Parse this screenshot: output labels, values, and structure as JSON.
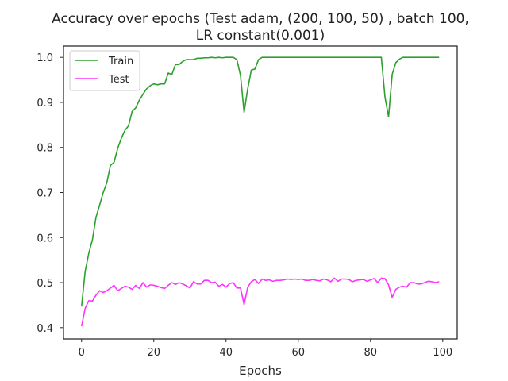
{
  "chart_data": {
    "type": "line",
    "title_line1": "Accuracy over epochs (Test adam, (200, 100, 50) , batch 100,",
    "title_line2": "LR constant(0.001)",
    "xlabel": "Epochs",
    "ylabel": "",
    "xlim": [
      -5,
      104
    ],
    "ylim": [
      0.375,
      1.025
    ],
    "xticks": [
      "0",
      "20",
      "40",
      "60",
      "80",
      "100"
    ],
    "yticks": [
      "0.4",
      "0.5",
      "0.6",
      "0.7",
      "0.8",
      "0.9",
      "1.0"
    ],
    "grid": false,
    "legend_position": "top-left",
    "series": [
      {
        "name": "Train",
        "color": "#2ca02c",
        "x": [
          0,
          1,
          2,
          3,
          4,
          5,
          6,
          7,
          8,
          9,
          10,
          11,
          12,
          13,
          14,
          15,
          16,
          17,
          18,
          19,
          20,
          21,
          22,
          23,
          24,
          25,
          26,
          27,
          28,
          29,
          30,
          31,
          32,
          33,
          34,
          35,
          36,
          37,
          38,
          39,
          40,
          41,
          42,
          43,
          44,
          45,
          46,
          47,
          48,
          49,
          50,
          51,
          52,
          53,
          54,
          55,
          56,
          57,
          58,
          59,
          60,
          61,
          62,
          63,
          64,
          65,
          66,
          67,
          68,
          69,
          70,
          71,
          72,
          73,
          74,
          75,
          76,
          77,
          78,
          79,
          80,
          81,
          82,
          83,
          84,
          85,
          86,
          87,
          88,
          89,
          90,
          91,
          92,
          93,
          94,
          95,
          96,
          97,
          98,
          99
        ],
        "values": [
          0.447,
          0.525,
          0.565,
          0.595,
          0.645,
          0.672,
          0.7,
          0.722,
          0.76,
          0.767,
          0.798,
          0.82,
          0.838,
          0.848,
          0.88,
          0.888,
          0.905,
          0.918,
          0.93,
          0.937,
          0.941,
          0.939,
          0.941,
          0.941,
          0.965,
          0.962,
          0.984,
          0.984,
          0.991,
          0.995,
          0.995,
          0.995,
          0.998,
          0.998,
          0.999,
          0.999,
          1.0,
          0.999,
          1.0,
          0.999,
          1.0,
          1.0,
          1.0,
          0.995,
          0.96,
          0.878,
          0.93,
          0.972,
          0.974,
          0.995,
          1.0,
          1.0,
          1.0,
          1.0,
          1.0,
          1.0,
          1.0,
          1.0,
          1.0,
          1.0,
          1.0,
          1.0,
          1.0,
          1.0,
          1.0,
          1.0,
          1.0,
          1.0,
          1.0,
          1.0,
          1.0,
          1.0,
          1.0,
          1.0,
          1.0,
          1.0,
          1.0,
          1.0,
          1.0,
          1.0,
          1.0,
          1.0,
          1.0,
          1.0,
          0.912,
          0.868,
          0.962,
          0.988,
          0.996,
          1.0,
          1.0,
          1.0,
          1.0,
          1.0,
          1.0,
          1.0,
          1.0,
          1.0,
          1.0,
          1.0
        ]
      },
      {
        "name": "Test",
        "color": "#ff33ff",
        "x": [
          0,
          1,
          2,
          3,
          4,
          5,
          6,
          7,
          8,
          9,
          10,
          11,
          12,
          13,
          14,
          15,
          16,
          17,
          18,
          19,
          20,
          21,
          22,
          23,
          24,
          25,
          26,
          27,
          28,
          29,
          30,
          31,
          32,
          33,
          34,
          35,
          36,
          37,
          38,
          39,
          40,
          41,
          42,
          43,
          44,
          45,
          46,
          47,
          48,
          49,
          50,
          51,
          52,
          53,
          54,
          55,
          56,
          57,
          58,
          59,
          60,
          61,
          62,
          63,
          64,
          65,
          66,
          67,
          68,
          69,
          70,
          71,
          72,
          73,
          74,
          75,
          76,
          77,
          78,
          79,
          80,
          81,
          82,
          83,
          84,
          85,
          86,
          87,
          88,
          89,
          90,
          91,
          92,
          93,
          94,
          95,
          96,
          97,
          98,
          99
        ],
        "values": [
          0.403,
          0.443,
          0.46,
          0.459,
          0.472,
          0.482,
          0.478,
          0.482,
          0.488,
          0.494,
          0.482,
          0.487,
          0.492,
          0.49,
          0.485,
          0.494,
          0.487,
          0.5,
          0.49,
          0.495,
          0.494,
          0.492,
          0.489,
          0.487,
          0.494,
          0.5,
          0.496,
          0.5,
          0.497,
          0.493,
          0.488,
          0.502,
          0.497,
          0.497,
          0.505,
          0.505,
          0.5,
          0.501,
          0.492,
          0.496,
          0.49,
          0.498,
          0.5,
          0.488,
          0.488,
          0.451,
          0.49,
          0.502,
          0.507,
          0.498,
          0.508,
          0.505,
          0.506,
          0.503,
          0.505,
          0.505,
          0.506,
          0.508,
          0.507,
          0.508,
          0.507,
          0.508,
          0.505,
          0.505,
          0.507,
          0.505,
          0.504,
          0.508,
          0.506,
          0.502,
          0.51,
          0.503,
          0.508,
          0.508,
          0.507,
          0.502,
          0.505,
          0.506,
          0.507,
          0.503,
          0.506,
          0.509,
          0.5,
          0.51,
          0.509,
          0.495,
          0.467,
          0.485,
          0.49,
          0.492,
          0.49,
          0.5,
          0.5,
          0.497,
          0.497,
          0.5,
          0.503,
          0.502,
          0.5,
          0.502
        ]
      }
    ]
  }
}
